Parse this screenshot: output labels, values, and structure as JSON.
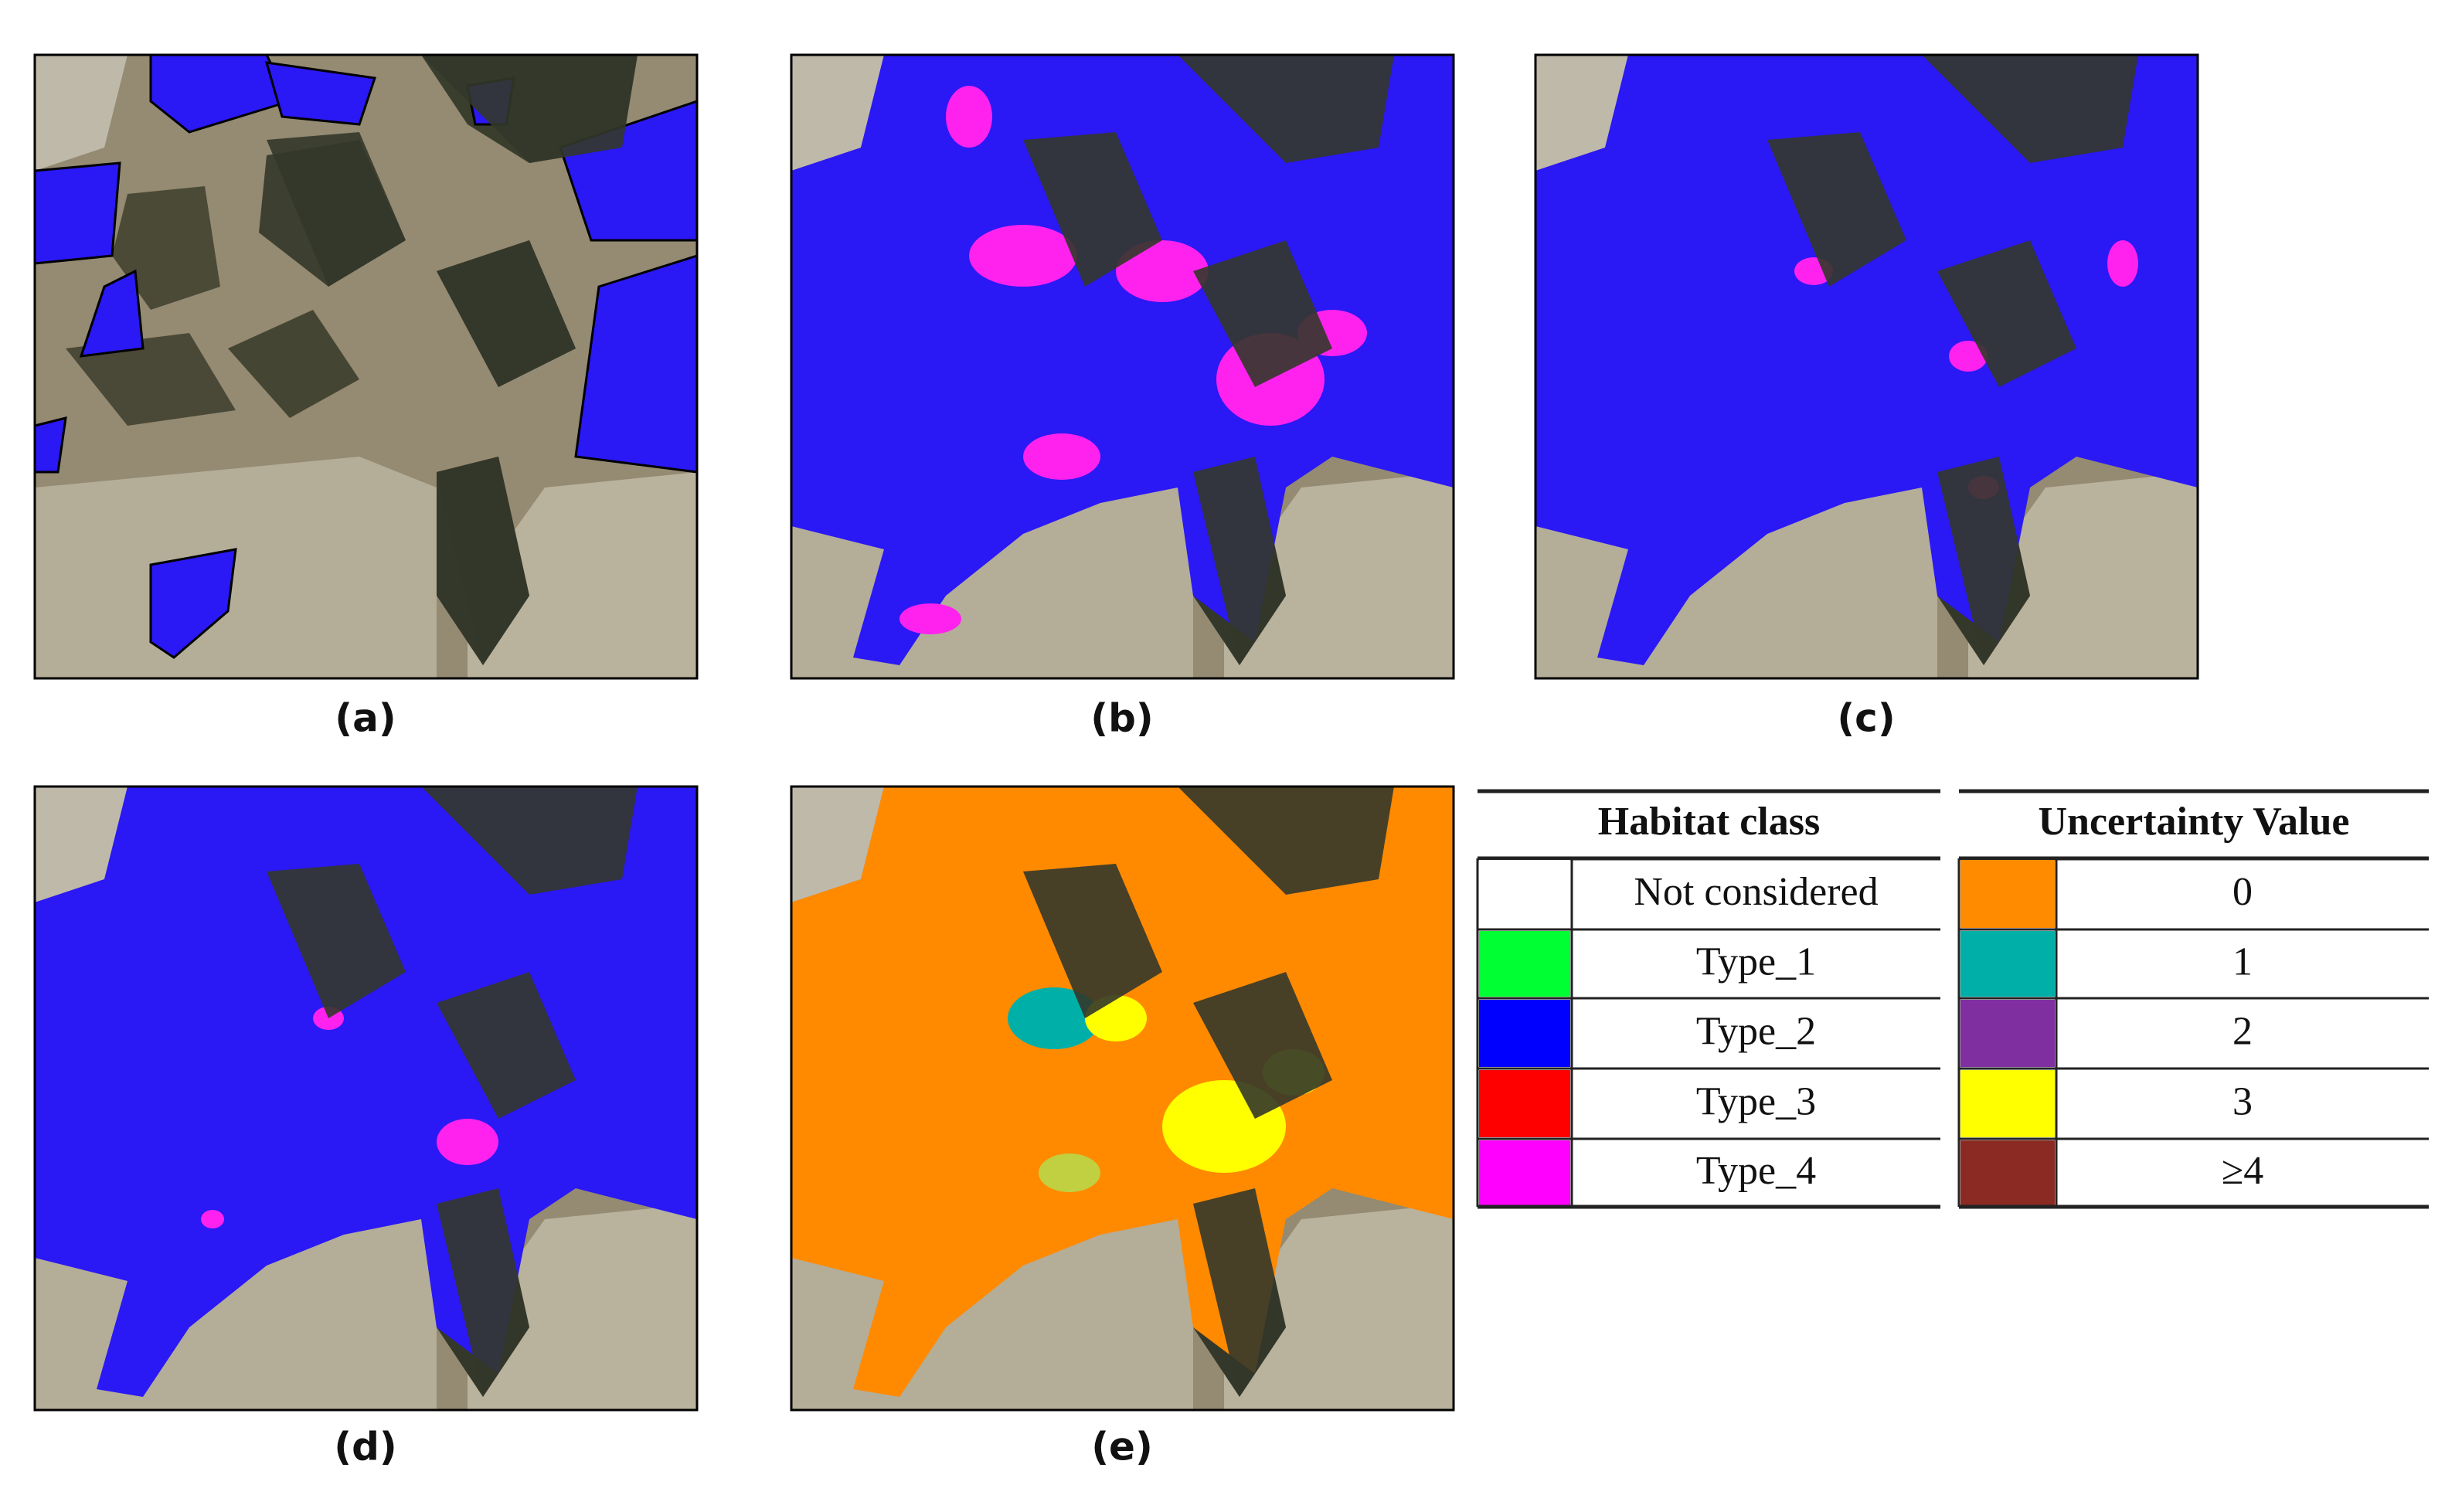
{
  "panels": [
    {
      "label": "(a)"
    },
    {
      "label": "(b)"
    },
    {
      "label": "(c)"
    },
    {
      "label": "(d)"
    },
    {
      "label": "(e)"
    }
  ],
  "legend": {
    "habitat": {
      "title": "Habitat class",
      "rows": [
        {
          "label": "Not considered",
          "color": "#ffffff"
        },
        {
          "label": "Type_1",
          "color": "#00ff33"
        },
        {
          "label": "Type_2",
          "color": "#0000ff"
        },
        {
          "label": "Type_3",
          "color": "#ff0000"
        },
        {
          "label": "Type_4",
          "color": "#ff00ff"
        }
      ]
    },
    "uncertainty": {
      "title": "Uncertainty Value",
      "rows": [
        {
          "label": "0",
          "color": "#ff8c00"
        },
        {
          "label": "1",
          "color": "#00b0a8"
        },
        {
          "label": "2",
          "color": "#7f2fa0"
        },
        {
          "label": "3",
          "color": "#ffff00"
        },
        {
          "label": "≥4",
          "color": "#8b2a22"
        }
      ]
    }
  }
}
